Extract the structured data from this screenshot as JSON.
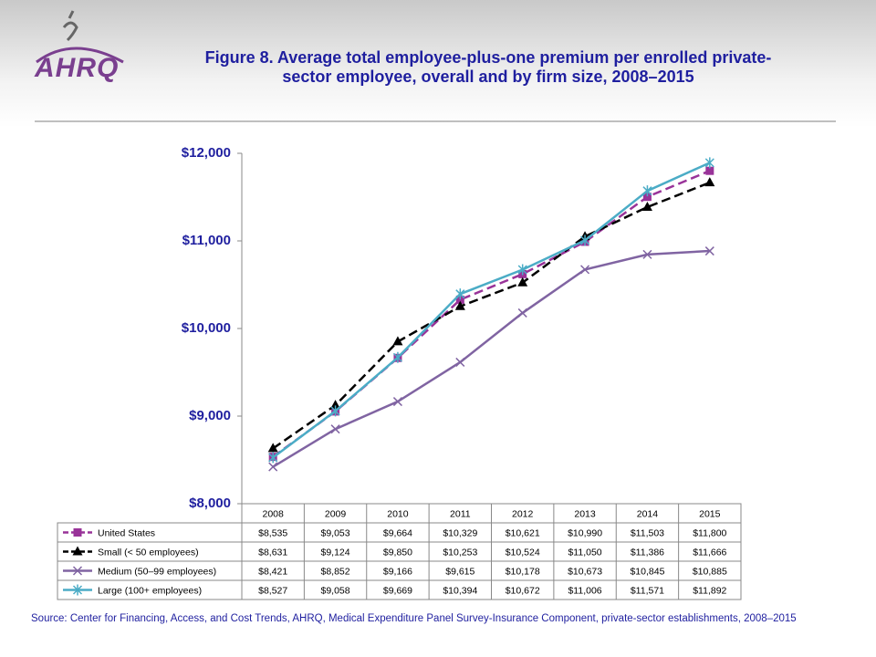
{
  "logo_text": "AHRQ",
  "chart_data": {
    "type": "line",
    "title": "Figure 8. Average total employee-plus-one premium per enrolled private-sector employee, overall and by firm size, 2008–2015",
    "source": "Source: Center for Financing, Access, and Cost Trends, AHRQ, Medical Expenditure Panel Survey-Insurance Component, private-sector establishments, 2008–2015",
    "categories": [
      "2008",
      "2009",
      "2010",
      "2011",
      "2012",
      "2013",
      "2014",
      "2015"
    ],
    "ylim": [
      8000,
      12000
    ],
    "yticks": [
      {
        "value": 8000,
        "label": "$8,000"
      },
      {
        "value": 9000,
        "label": "$9,000"
      },
      {
        "value": 10000,
        "label": "$10,000"
      },
      {
        "value": 11000,
        "label": "$11,000"
      },
      {
        "value": 12000,
        "label": "$12,000"
      }
    ],
    "grid": false,
    "series": [
      {
        "name": "United States",
        "color": "#993399",
        "dash": true,
        "marker": "square",
        "values": [
          8535,
          9053,
          9664,
          10329,
          10621,
          10990,
          11503,
          11800
        ],
        "value_labels": [
          "$8,535",
          "$9,053",
          "$9,664",
          "$10,329",
          "$10,621",
          "$10,990",
          "$11,503",
          "$11,800"
        ]
      },
      {
        "name": "Small (< 50 employees)",
        "color": "#000000",
        "dash": true,
        "marker": "triangle",
        "values": [
          8631,
          9124,
          9850,
          10253,
          10524,
          11050,
          11386,
          11666
        ],
        "value_labels": [
          "$8,631",
          "$9,124",
          "$9,850",
          "$10,253",
          "$10,524",
          "$11,050",
          "$11,386",
          "$11,666"
        ]
      },
      {
        "name": "Medium (50–99 employees)",
        "color": "#8064a2",
        "dash": false,
        "marker": "x",
        "values": [
          8421,
          8852,
          9166,
          9615,
          10178,
          10673,
          10845,
          10885
        ],
        "value_labels": [
          "$8,421",
          "$8,852",
          "$9,166",
          "$9,615",
          "$10,178",
          "$10,673",
          "$10,845",
          "$10,885"
        ]
      },
      {
        "name": "Large (100+ employees)",
        "color": "#4bacc6",
        "dash": false,
        "marker": "star",
        "values": [
          8527,
          9058,
          9669,
          10394,
          10672,
          11006,
          11571,
          11892
        ],
        "value_labels": [
          "$8,527",
          "$9,058",
          "$9,669",
          "$10,394",
          "$10,672",
          "$11,006",
          "$11,571",
          "$11,892"
        ]
      }
    ]
  }
}
